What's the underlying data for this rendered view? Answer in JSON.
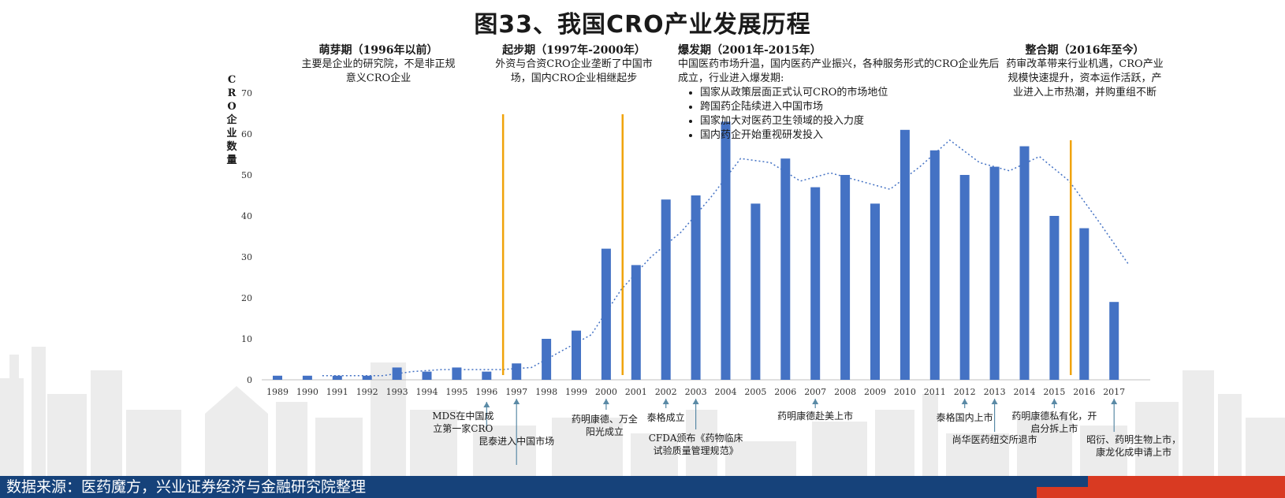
{
  "title": "图33、我国CRO产业发展历程",
  "y_axis_label": "CRO企业数量",
  "phases": [
    {
      "title": "萌芽期（1996年以前）",
      "desc": "主要是企业的研究院，不是非正规意义CRO企业"
    },
    {
      "title": "起步期（1997年-2000年）",
      "desc": "外资与合资CRO企业垄断了中国市场，国内CRO企业相继起步"
    },
    {
      "title": "爆发期（2001年-2015年）",
      "desc": "中国医药市场升温，国内医药产业振兴，各种服务形式的CRO企业先后成立，行业进入爆发期:",
      "bullets": [
        "国家从政策层面正式认可CRO的市场地位",
        "跨国药企陆续进入中国市场",
        "国家加大对医药卫生领域的投入力度",
        "国内药企开始重视研发投入"
      ]
    },
    {
      "title": "整合期（2016年至今）",
      "desc": "药审改革带来行业机遇，CRO产业规模快速提升，资本运作活跃，产业进入上市热潮，并购重组不断"
    }
  ],
  "annotations": [
    {
      "year": "1996",
      "text": "MDS在中国成立第一家CRO"
    },
    {
      "year": "1997",
      "text": "昆泰进入中国市场"
    },
    {
      "year": "2000",
      "text": "药明康德、万全阳光成立"
    },
    {
      "year": "2002",
      "text": "泰格成立"
    },
    {
      "year": "2003",
      "text": "CFDA颁布《药物临床试验质量管理规范》"
    },
    {
      "year": "2007",
      "text": "药明康德赴美上市"
    },
    {
      "year": "2012",
      "text": "泰格国内上市"
    },
    {
      "year": "2013",
      "text": "尚华医药纽交所退市"
    },
    {
      "year": "2015",
      "text": "药明康德私有化，开启分拆上市"
    },
    {
      "year": "2017",
      "text": "昭衍、药明生物上市，康龙化成申请上市"
    }
  ],
  "phase_dividers": [
    "1996–1997",
    "2000–2001",
    "2015–2016"
  ],
  "chart_data": {
    "type": "bar",
    "categories": [
      "1989",
      "1990",
      "1991",
      "1992",
      "1993",
      "1994",
      "1995",
      "1996",
      "1997",
      "1998",
      "1999",
      "2000",
      "2001",
      "2002",
      "2003",
      "2004",
      "2005",
      "2006",
      "2007",
      "2008",
      "2009",
      "2010",
      "2011",
      "2012",
      "2013",
      "2014",
      "2015",
      "2016",
      "2017"
    ],
    "series": [
      {
        "values": [
          1,
          1,
          1,
          1,
          3,
          2,
          3,
          2,
          4,
          10,
          12,
          32,
          28,
          44,
          45,
          63,
          43,
          54,
          47,
          50,
          43,
          61,
          56,
          50,
          52,
          57,
          40,
          37,
          19
        ]
      }
    ],
    "trendline": {
      "type": "moving-average",
      "style": "dotted"
    },
    "ylim": [
      0,
      70
    ],
    "yticks": [
      0,
      10,
      20,
      30,
      40,
      50,
      60,
      70
    ],
    "bar_color": "#4472c4",
    "divider_color": "#f0a30a",
    "grid": false
  },
  "footer": "数据来源：医药魔方，兴业证券经济与金融研究院整理",
  "colors": {
    "footer_blue": "#16427a",
    "footer_red": "#d93a22"
  }
}
